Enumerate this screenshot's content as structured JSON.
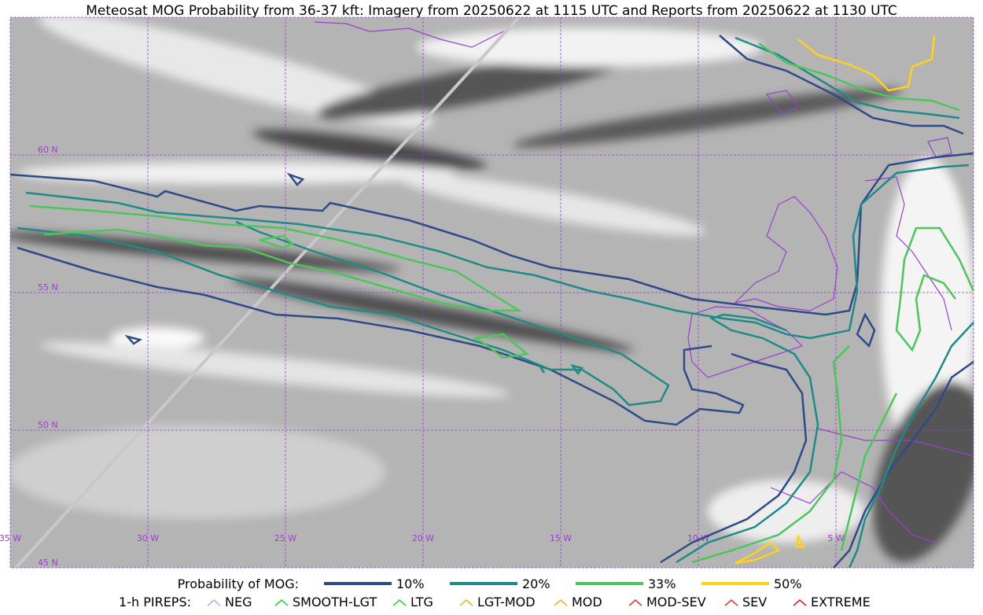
{
  "title": "Meteosat MOG Probability from 36-37 kft: Imagery from 20250622 at 1115 UTC and Reports from 20250622 at 1130 UTC",
  "grid_labels": {
    "latitudes": [
      "60 N",
      "55 N",
      "50 N",
      "45 N"
    ],
    "longitudes": [
      "35 W",
      "30 W",
      "25 W",
      "20 W",
      "15 W",
      "10 W",
      "5 W"
    ]
  },
  "legend": {
    "probability_title": "Probability of MOG:",
    "probability_levels": [
      {
        "label": "10%",
        "color": "#2e4a87"
      },
      {
        "label": "20%",
        "color": "#1f8a87"
      },
      {
        "label": "33%",
        "color": "#4cc65a"
      },
      {
        "label": "50%",
        "color": "#ffd21a"
      }
    ],
    "pireps_title": "1-h PIREPS:",
    "pireps": [
      {
        "label": "NEG",
        "color": "#b0b0f0"
      },
      {
        "label": "SMOOTH-LGT",
        "color": "#2ecc2e"
      },
      {
        "label": "LTG",
        "color": "#22dd22"
      },
      {
        "label": "LGT-MOD",
        "color": "#f0b020"
      },
      {
        "label": "MOD",
        "color": "#f0b020"
      },
      {
        "label": "MOD-SEV",
        "color": "#e83030"
      },
      {
        "label": "SEV",
        "color": "#e83030"
      },
      {
        "label": "EXTREME",
        "color": "#e81010"
      }
    ]
  }
}
